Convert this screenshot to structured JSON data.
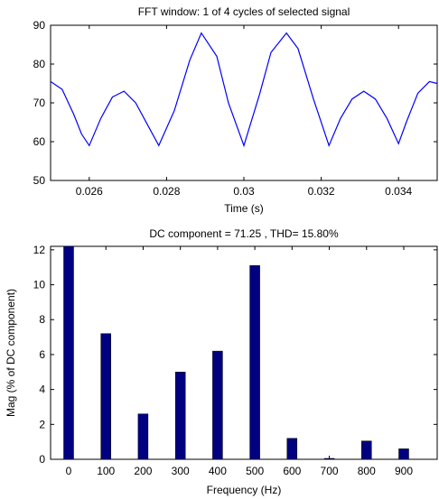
{
  "chart_data": [
    {
      "type": "line",
      "title": "FFT window: 1 of 4 cycles of selected signal",
      "xlabel": "Time (s)",
      "ylabel": "",
      "xlim": [
        0.025,
        0.035
      ],
      "ylim": [
        50,
        90
      ],
      "xticks": [
        0.026,
        0.028,
        0.03,
        0.032,
        0.034
      ],
      "xtick_labels": [
        "0.026",
        "0.028",
        "0.03",
        "0.032",
        "0.034"
      ],
      "yticks": [
        50,
        60,
        70,
        80,
        90
      ],
      "ytick_labels": [
        "50",
        "60",
        "70",
        "80",
        "90"
      ],
      "grid": false,
      "series": [
        {
          "x": [
            0.025,
            0.0253,
            0.0256,
            0.0258,
            0.026,
            0.0263,
            0.0266,
            0.0269,
            0.0272,
            0.0275,
            0.0278,
            0.0282,
            0.0286,
            0.0289,
            0.0293,
            0.0296,
            0.03,
            0.0304,
            0.0307,
            0.0311,
            0.0314,
            0.0318,
            0.0322,
            0.0325,
            0.0328,
            0.0331,
            0.0334,
            0.0337,
            0.034,
            0.0342,
            0.0345,
            0.0348,
            0.035
          ],
          "y": [
            75.5,
            73.5,
            67,
            62,
            59,
            66,
            71.5,
            73,
            70,
            64.5,
            59,
            68,
            81,
            88,
            82,
            70,
            59,
            72,
            83,
            88,
            84,
            71,
            59,
            66,
            71,
            73,
            71,
            66,
            59.5,
            65,
            72.5,
            75.5,
            75
          ],
          "color": "#0000ff"
        }
      ]
    },
    {
      "type": "bar",
      "title": "DC component = 71.25 , THD= 15.80%",
      "xlabel": "Frequency (Hz)",
      "ylabel": "Mag (% of DC component)",
      "ylim": [
        0,
        12.2
      ],
      "categories": [
        "0",
        "100",
        "200",
        "300",
        "400",
        "500",
        "600",
        "700",
        "800",
        "900"
      ],
      "values": [
        12.2,
        7.2,
        2.6,
        5.0,
        6.2,
        11.1,
        1.2,
        0.05,
        1.05,
        0.6
      ],
      "yticks": [
        0,
        2,
        4,
        6,
        8,
        10,
        12
      ],
      "ytick_labels": [
        "0",
        "2",
        "4",
        "6",
        "8",
        "10",
        "12"
      ],
      "grid": false,
      "bar_color": "#000080"
    }
  ]
}
